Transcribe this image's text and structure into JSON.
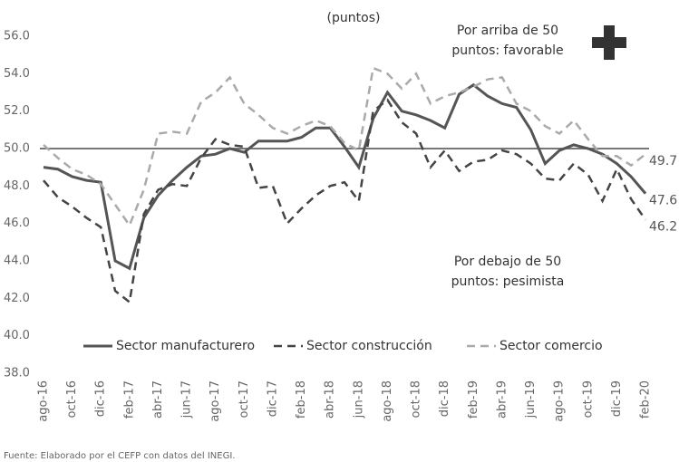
{
  "chart_data": {
    "type": "line",
    "subtitle": "(puntos)",
    "annotations": [
      {
        "lines": [
          "Por arriba de 50",
          "puntos: favorable"
        ]
      },
      {
        "lines": [
          "Por debajo de 50",
          "puntos: pesimista"
        ]
      }
    ],
    "source": "Fuente: Elaborado por el CEFP con datos del INEGI.",
    "categories": [
      "ago-16",
      null,
      "oct-16",
      null,
      "dic-16",
      null,
      "feb-17",
      null,
      "abr-17",
      null,
      "jun-17",
      null,
      "ago-17",
      null,
      "oct-17",
      null,
      "dic-17",
      null,
      "feb-18",
      null,
      "abr-18",
      null,
      "jun-18",
      null,
      "ago-18",
      null,
      "oct-18",
      null,
      "dic-18",
      null,
      "feb-19",
      null,
      "abr-19",
      null,
      "jun-19",
      null,
      "ago-19",
      null,
      "oct-19",
      null,
      "dic-19",
      null,
      "feb-20"
    ],
    "series": [
      {
        "name": "Sector manufacturero",
        "color": "#555555",
        "style": "solid",
        "values": [
          49.0,
          48.9,
          48.5,
          48.3,
          48.2,
          44.0,
          43.6,
          46.3,
          47.5,
          48.3,
          49.0,
          49.6,
          49.7,
          50.0,
          49.8,
          50.4,
          50.4,
          50.4,
          50.6,
          51.1,
          51.1,
          50.1,
          49.0,
          51.6,
          53.0,
          52.0,
          51.8,
          51.5,
          51.1,
          52.9,
          53.4,
          52.8,
          52.4,
          52.2,
          51.0,
          49.2,
          49.9,
          50.2,
          50.0,
          49.7,
          49.2,
          48.5,
          47.6
        ],
        "value_labels": [
          null,
          null,
          null,
          null,
          null,
          null,
          null,
          null,
          null,
          null,
          null,
          null,
          null,
          null,
          null,
          null,
          null,
          null,
          null,
          null,
          null,
          null,
          null,
          null,
          null,
          null,
          null,
          null,
          null,
          null,
          null,
          null,
          null,
          null,
          null,
          null,
          null,
          null,
          null,
          null,
          null,
          null,
          "47.6"
        ]
      },
      {
        "name": "Sector construcción",
        "color": "#444444",
        "style": "dashed",
        "values": [
          48.3,
          47.4,
          46.9,
          46.3,
          45.8,
          42.4,
          41.8,
          46.5,
          47.8,
          48.1,
          48.0,
          49.5,
          50.5,
          50.2,
          50.1,
          47.9,
          48.0,
          46.0,
          46.8,
          47.5,
          48.0,
          48.2,
          47.2,
          52.0,
          52.6,
          51.4,
          50.8,
          49.0,
          49.9,
          48.8,
          49.3,
          49.4,
          49.9,
          49.7,
          49.2,
          48.4,
          48.3,
          49.2,
          48.6,
          47.2,
          48.9,
          47.3,
          46.2
        ],
        "value_labels": [
          null,
          null,
          null,
          null,
          null,
          null,
          null,
          null,
          null,
          null,
          null,
          null,
          null,
          null,
          null,
          null,
          null,
          null,
          null,
          null,
          null,
          null,
          null,
          null,
          null,
          null,
          null,
          null,
          null,
          null,
          null,
          null,
          null,
          null,
          null,
          null,
          null,
          null,
          null,
          null,
          null,
          null,
          "46.2"
        ]
      },
      {
        "name": "Sector comercio",
        "color": "#aaaaaa",
        "style": "dashed",
        "values": [
          50.2,
          49.5,
          48.9,
          48.6,
          48.1,
          47.0,
          45.9,
          47.8,
          50.8,
          50.9,
          50.8,
          52.5,
          53.0,
          53.8,
          52.4,
          51.8,
          51.1,
          50.8,
          51.2,
          51.5,
          51.2,
          50.3,
          49.9,
          54.3,
          54.0,
          53.2,
          54.0,
          52.4,
          52.8,
          53.0,
          53.3,
          53.7,
          53.8,
          52.4,
          52.0,
          51.2,
          50.8,
          51.5,
          50.5,
          49.6,
          49.6,
          49.1,
          49.7
        ],
        "value_labels": [
          null,
          null,
          null,
          null,
          null,
          null,
          null,
          null,
          null,
          null,
          null,
          null,
          null,
          null,
          null,
          null,
          null,
          null,
          null,
          null,
          null,
          null,
          null,
          null,
          null,
          null,
          null,
          null,
          null,
          null,
          null,
          null,
          null,
          null,
          null,
          null,
          null,
          null,
          null,
          null,
          null,
          null,
          "49.7"
        ]
      }
    ],
    "reference_line": 50,
    "ylim": [
      38,
      56
    ],
    "yticks": [
      {
        "value": 38,
        "label": "38.0"
      },
      {
        "value": 40,
        "label": "40.0"
      },
      {
        "value": 42,
        "label": "42.0"
      },
      {
        "value": 44,
        "label": "44.0"
      },
      {
        "value": 46,
        "label": "46.0"
      },
      {
        "value": 48,
        "label": "48.0"
      },
      {
        "value": 50,
        "label": "50.0"
      },
      {
        "value": 52,
        "label": "52.0"
      },
      {
        "value": 54,
        "label": "54.0"
      },
      {
        "value": 56,
        "label": "56.0"
      }
    ],
    "grid": false,
    "legend": "bottom"
  }
}
